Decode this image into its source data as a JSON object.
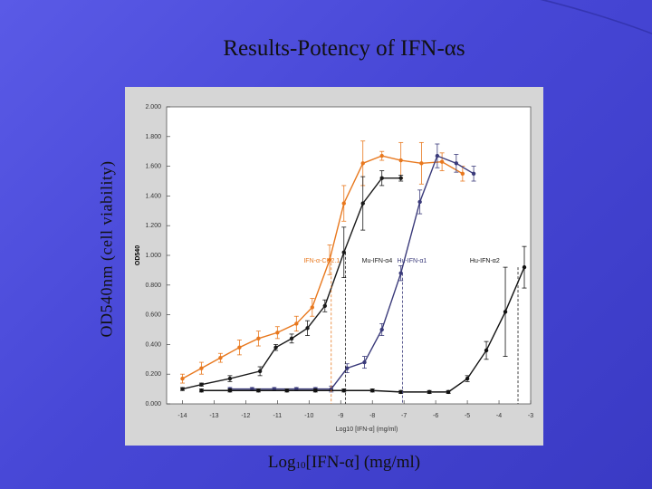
{
  "slide": {
    "title_prefix": "Results-Potency of IFN-",
    "title_symbol": "α",
    "title_suffix": "s",
    "ylabel": "OD540nm (cell viability)",
    "xlabel_prefix": "Log",
    "xlabel_sub": "10",
    "xlabel_mid": "[IFN-",
    "xlabel_symbol": "α",
    "xlabel_suffix": "] (mg/ml)"
  },
  "chart_data": {
    "type": "line",
    "inner_ylabel": "OD540",
    "inner_xlabel": "Log10 [IFN-α] (mg/ml)",
    "xlim": [
      -14.5,
      -3
    ],
    "ylim": [
      0,
      2.0
    ],
    "xticks": [
      "-14",
      "-13",
      "-12",
      "-11",
      "-10",
      "-9",
      "-8",
      "-7",
      "-6",
      "-5",
      "-4",
      "-3"
    ],
    "yticks": [
      "0.000",
      "0.200",
      "0.400",
      "0.600",
      "0.800",
      "1.000",
      "1.200",
      "1.400",
      "1.600",
      "1.800",
      "2.000"
    ],
    "grid": false,
    "series": [
      {
        "name": "IFN-α-CH2.1",
        "color": "#e8781e",
        "x": [
          -14,
          -13.4,
          -12.8,
          -12.2,
          -11.6,
          -11.0,
          -10.4,
          -9.9,
          -9.35,
          -8.9,
          -8.3,
          -7.7,
          -7.1,
          -6.45,
          -5.8,
          -5.15
        ],
        "y": [
          0.17,
          0.24,
          0.31,
          0.38,
          0.44,
          0.48,
          0.54,
          0.65,
          0.97,
          1.35,
          1.62,
          1.67,
          1.64,
          1.62,
          1.63,
          1.55
        ],
        "err": [
          0.03,
          0.04,
          0.03,
          0.05,
          0.05,
          0.04,
          0.05,
          0.06,
          0.1,
          0.12,
          0.15,
          0.03,
          0.12,
          0.14,
          0.06,
          0.05
        ]
      },
      {
        "name": "Mu-IFN-α4",
        "color": "#1a1a1a",
        "x": [
          -14,
          -13.4,
          -12.5,
          -11.55,
          -11.05,
          -10.55,
          -10.05,
          -9.5,
          -8.9,
          -8.3,
          -7.7,
          -7.1
        ],
        "y": [
          0.1,
          0.13,
          0.17,
          0.22,
          0.38,
          0.44,
          0.51,
          0.66,
          1.02,
          1.35,
          1.52,
          1.52
        ],
        "err": [
          0.01,
          0.01,
          0.02,
          0.03,
          0.02,
          0.03,
          0.05,
          0.04,
          0.17,
          0.18,
          0.05,
          0.02
        ]
      },
      {
        "name": "Hu-IFN-α1",
        "color": "#3a3a7a",
        "x": [
          -12.5,
          -11.8,
          -11.1,
          -10.4,
          -9.8,
          -9.3,
          -8.8,
          -8.25,
          -7.7,
          -7.1,
          -6.5,
          -5.95,
          -5.35,
          -4.8
        ],
        "y": [
          0.1,
          0.1,
          0.1,
          0.1,
          0.1,
          0.1,
          0.24,
          0.28,
          0.5,
          0.88,
          1.36,
          1.67,
          1.62,
          1.55
        ],
        "err": [
          0.01,
          0.01,
          0.01,
          0.01,
          0.01,
          0.02,
          0.03,
          0.04,
          0.04,
          0.05,
          0.08,
          0.08,
          0.06,
          0.05
        ]
      },
      {
        "name": "Hu-IFN-α2",
        "color": "#111111",
        "x": [
          -13.4,
          -12.5,
          -11.6,
          -10.7,
          -9.8,
          -8.9,
          -8.0,
          -7.1,
          -6.2,
          -5.6,
          -5.0,
          -4.4,
          -3.8,
          -3.2
        ],
        "y": [
          0.09,
          0.09,
          0.09,
          0.09,
          0.09,
          0.09,
          0.09,
          0.08,
          0.08,
          0.08,
          0.17,
          0.36,
          0.62,
          0.92
        ],
        "err": [
          0.01,
          0.01,
          0.01,
          0.01,
          0.01,
          0.01,
          0.01,
          0.01,
          0.01,
          0.01,
          0.02,
          0.06,
          0.3,
          0.14
        ]
      }
    ]
  }
}
